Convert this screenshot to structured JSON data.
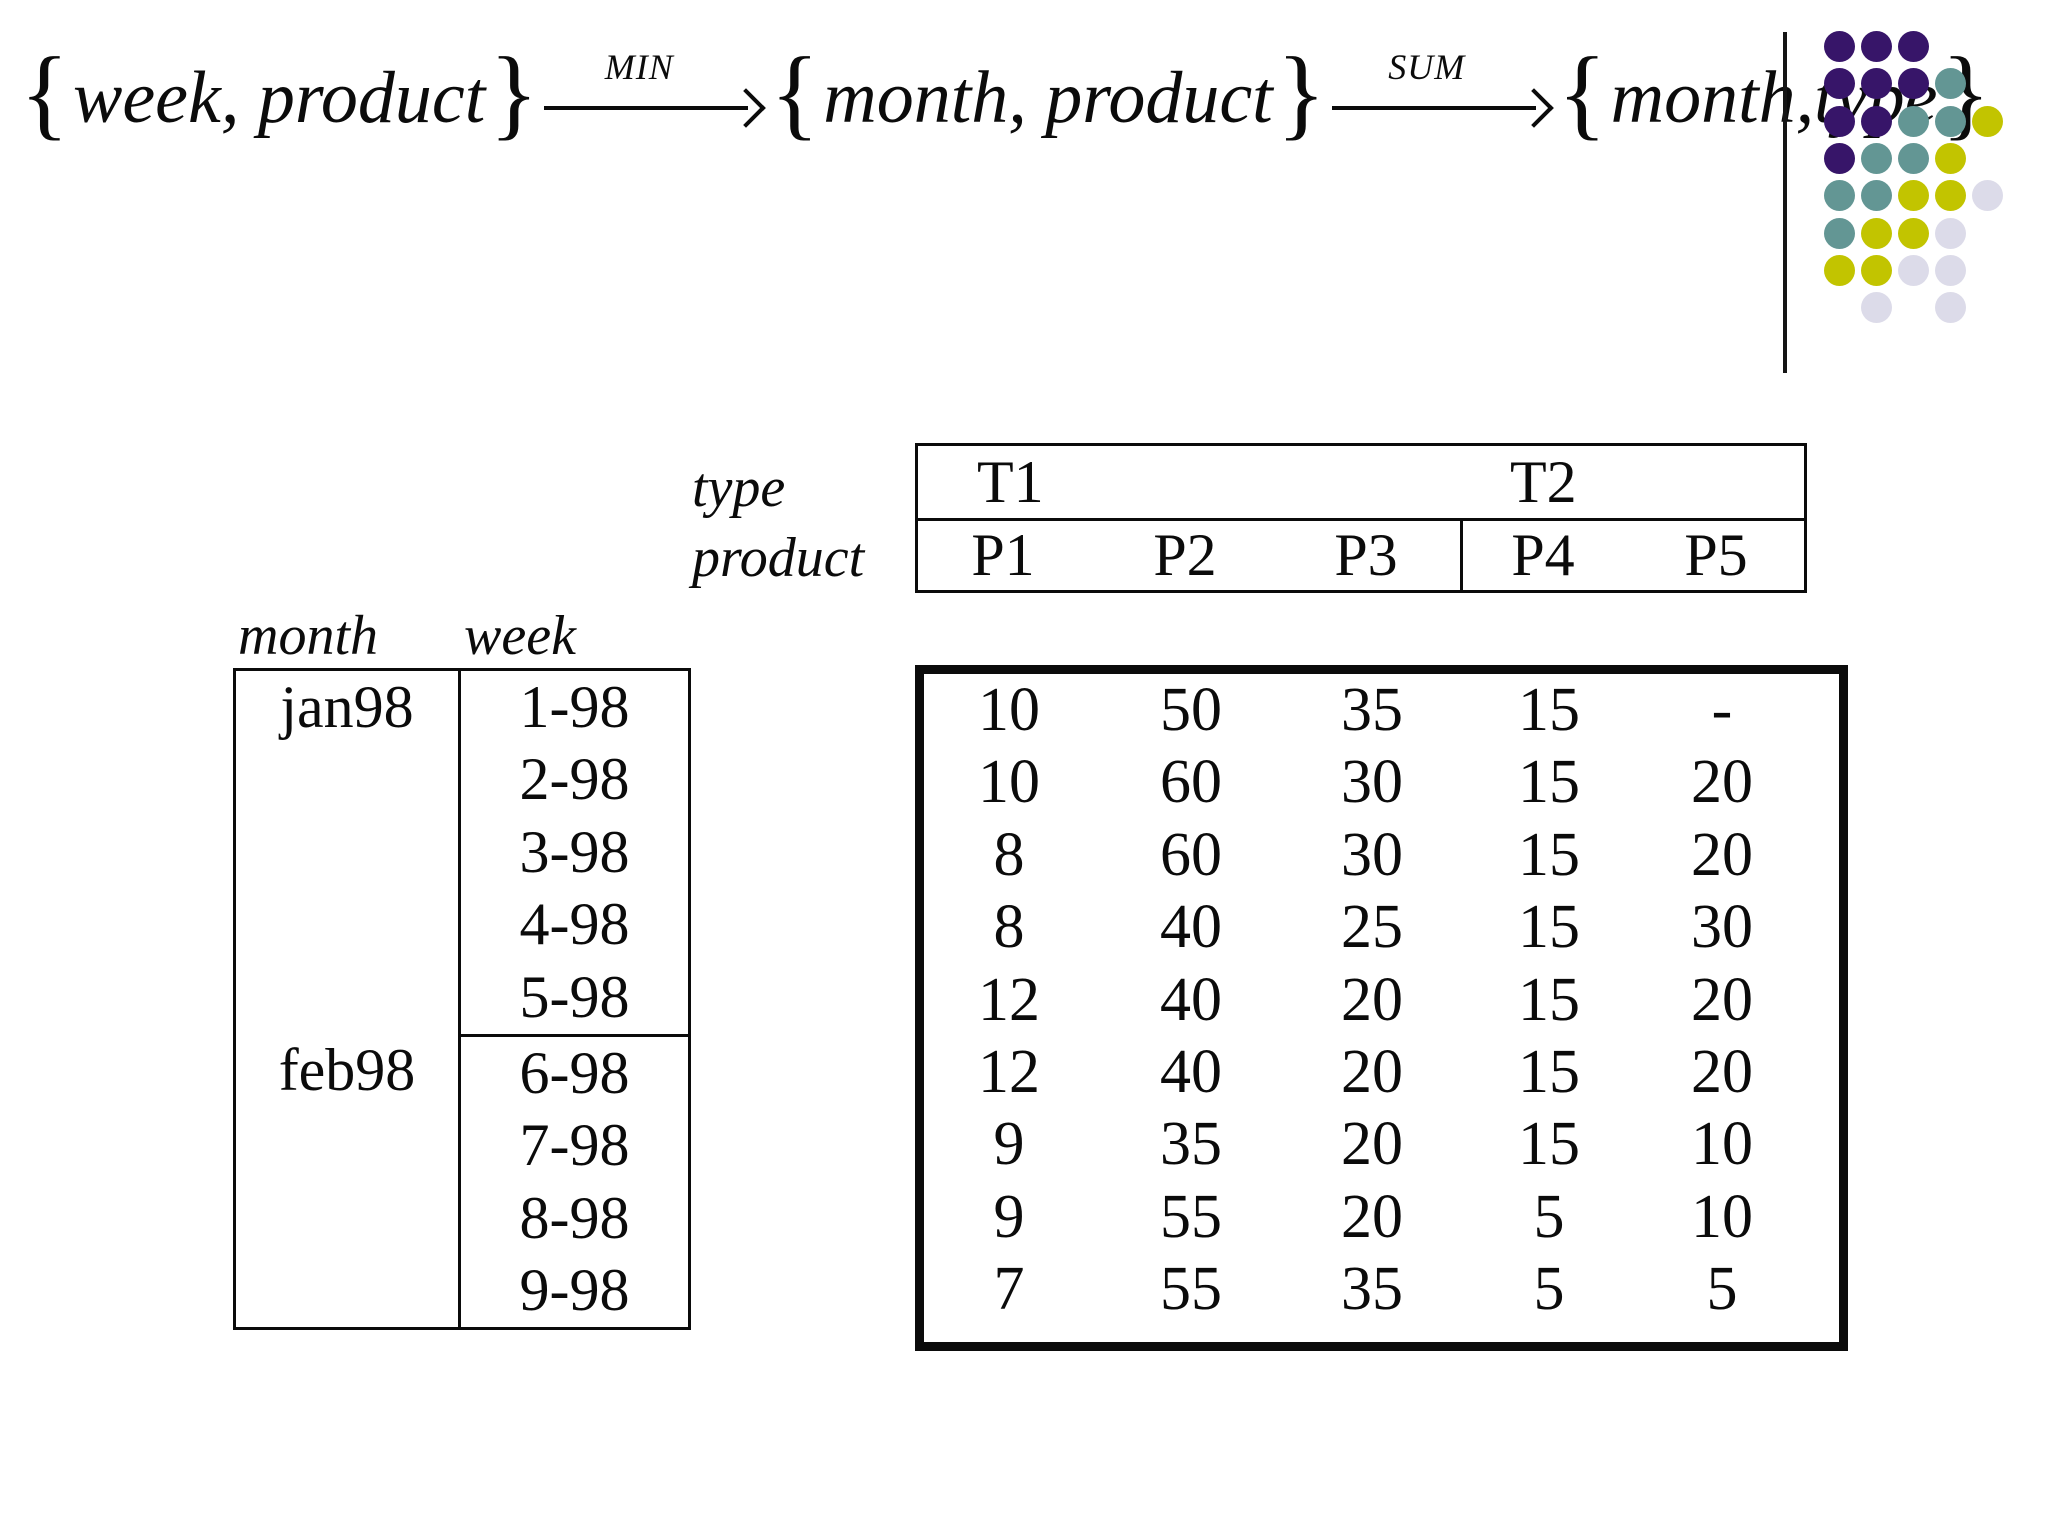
{
  "formula": {
    "brace_open": "{",
    "brace_close": "}",
    "terms": [
      {
        "text": "week, product"
      },
      {
        "text": "month, product"
      },
      {
        "text": "month,type"
      }
    ],
    "arrows": [
      {
        "label": "MIN"
      },
      {
        "label": "SUM"
      }
    ]
  },
  "decoration": {
    "dot_colors": {
      "P": "#371569",
      "T": "#639694",
      "Y": "#c2c400",
      "L": "#dcdbe9"
    },
    "dot_pattern": [
      "PPP..",
      "PPPT.",
      "PPTTY",
      "PTTY.",
      "TTYYL",
      "TYYL.",
      "YYLL.",
      ".L.L."
    ]
  },
  "dimension_table": {
    "month_label": "month",
    "week_label": "week",
    "groups": [
      {
        "month": "jan98",
        "weeks": [
          "1-98",
          "2-98",
          "3-98",
          "4-98",
          "5-98"
        ]
      },
      {
        "month": "feb98",
        "weeks": [
          "6-98",
          "7-98",
          "8-98",
          "9-98"
        ]
      }
    ]
  },
  "fact_table": {
    "type_label": "type",
    "product_label": "product",
    "types": [
      {
        "name": "T1",
        "span": 3
      },
      {
        "name": "T2",
        "span": 2
      }
    ],
    "products": [
      "P1",
      "P2",
      "P3",
      "P4",
      "P5"
    ],
    "rows": [
      [
        "10",
        "50",
        "35",
        "15",
        "-"
      ],
      [
        "10",
        "60",
        "30",
        "15",
        "20"
      ],
      [
        "8",
        "60",
        "30",
        "15",
        "20"
      ],
      [
        "8",
        "40",
        "25",
        "15",
        "30"
      ],
      [
        "12",
        "40",
        "20",
        "15",
        "20"
      ],
      [
        "12",
        "40",
        "20",
        "15",
        "20"
      ],
      [
        "9",
        "35",
        "20",
        "15",
        "10"
      ],
      [
        "9",
        "55",
        "20",
        "5",
        "10"
      ],
      [
        "7",
        "55",
        "35",
        "5",
        "5"
      ]
    ]
  }
}
